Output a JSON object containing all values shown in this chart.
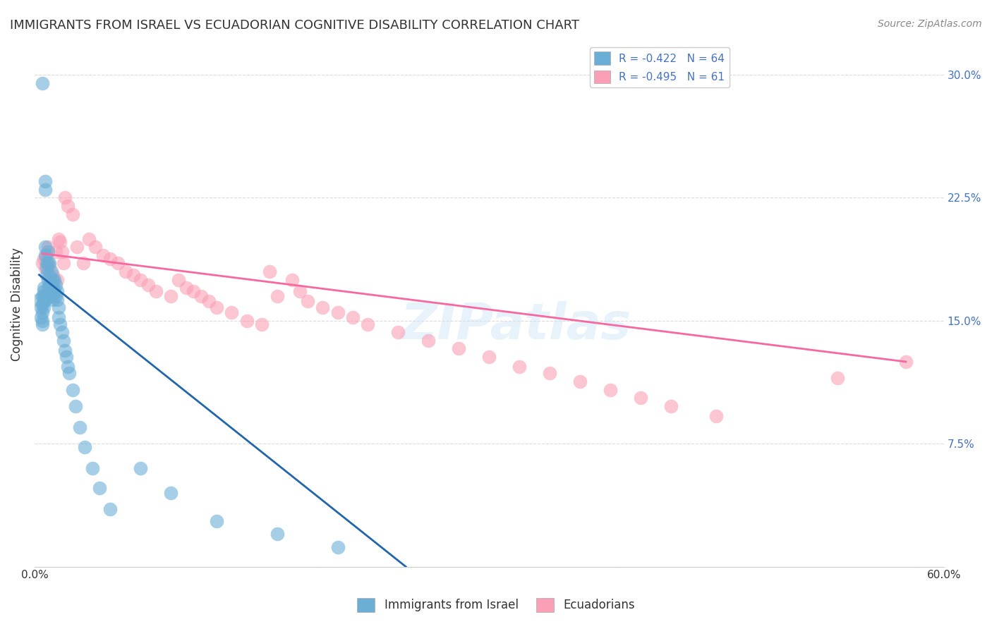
{
  "title": "IMMIGRANTS FROM ISRAEL VS ECUADORIAN COGNITIVE DISABILITY CORRELATION CHART",
  "source": "Source: ZipAtlas.com",
  "ylabel": "Cognitive Disability",
  "xlim": [
    0.0,
    0.6
  ],
  "ylim": [
    0.0,
    0.32
  ],
  "xticks": [
    0.0,
    0.1,
    0.2,
    0.3,
    0.4,
    0.5,
    0.6
  ],
  "xtick_labels": [
    "0.0%",
    "",
    "",
    "",
    "",
    "",
    "60.0%"
  ],
  "yticks": [
    0.0,
    0.075,
    0.15,
    0.225,
    0.3
  ],
  "ytick_labels_right": [
    "",
    "7.5%",
    "15.0%",
    "22.5%",
    "30.0%"
  ],
  "grid_color": "#cccccc",
  "background_color": "#ffffff",
  "watermark": "ZIPatlas",
  "color_blue": "#6baed6",
  "color_pink": "#fa9fb5",
  "color_blue_line": "#2166ac",
  "color_pink_line": "#f768a1",
  "israel_x": [
    0.003,
    0.004,
    0.004,
    0.005,
    0.005,
    0.005,
    0.005,
    0.005,
    0.005,
    0.006,
    0.006,
    0.006,
    0.006,
    0.006,
    0.007,
    0.007,
    0.007,
    0.007,
    0.007,
    0.008,
    0.008,
    0.008,
    0.008,
    0.009,
    0.009,
    0.009,
    0.009,
    0.01,
    0.01,
    0.01,
    0.01,
    0.011,
    0.011,
    0.011,
    0.012,
    0.012,
    0.012,
    0.013,
    0.013,
    0.014,
    0.014,
    0.015,
    0.015,
    0.016,
    0.016,
    0.017,
    0.018,
    0.019,
    0.02,
    0.021,
    0.022,
    0.023,
    0.025,
    0.027,
    0.03,
    0.033,
    0.038,
    0.043,
    0.05,
    0.07,
    0.09,
    0.12,
    0.16,
    0.2
  ],
  "israel_y": [
    0.163,
    0.158,
    0.152,
    0.295,
    0.165,
    0.16,
    0.155,
    0.15,
    0.148,
    0.17,
    0.168,
    0.165,
    0.162,
    0.158,
    0.235,
    0.23,
    0.195,
    0.19,
    0.163,
    0.185,
    0.182,
    0.178,
    0.165,
    0.192,
    0.185,
    0.175,
    0.17,
    0.185,
    0.178,
    0.172,
    0.165,
    0.18,
    0.173,
    0.165,
    0.175,
    0.17,
    0.163,
    0.175,
    0.168,
    0.172,
    0.165,
    0.168,
    0.163,
    0.158,
    0.152,
    0.148,
    0.143,
    0.138,
    0.132,
    0.128,
    0.122,
    0.118,
    0.108,
    0.098,
    0.085,
    0.073,
    0.06,
    0.048,
    0.035,
    0.06,
    0.045,
    0.028,
    0.02,
    0.012
  ],
  "ecuador_x": [
    0.005,
    0.006,
    0.007,
    0.008,
    0.009,
    0.01,
    0.011,
    0.012,
    0.014,
    0.015,
    0.016,
    0.017,
    0.018,
    0.019,
    0.02,
    0.022,
    0.025,
    0.028,
    0.032,
    0.036,
    0.04,
    0.045,
    0.05,
    0.055,
    0.06,
    0.065,
    0.07,
    0.075,
    0.08,
    0.09,
    0.095,
    0.1,
    0.105,
    0.11,
    0.115,
    0.12,
    0.13,
    0.14,
    0.15,
    0.155,
    0.16,
    0.17,
    0.175,
    0.18,
    0.19,
    0.2,
    0.21,
    0.22,
    0.24,
    0.26,
    0.28,
    0.3,
    0.32,
    0.34,
    0.36,
    0.38,
    0.4,
    0.42,
    0.45,
    0.53,
    0.575
  ],
  "ecuador_y": [
    0.185,
    0.188,
    0.182,
    0.19,
    0.195,
    0.183,
    0.175,
    0.178,
    0.192,
    0.175,
    0.2,
    0.198,
    0.192,
    0.185,
    0.225,
    0.22,
    0.215,
    0.195,
    0.185,
    0.2,
    0.195,
    0.19,
    0.188,
    0.185,
    0.18,
    0.178,
    0.175,
    0.172,
    0.168,
    0.165,
    0.175,
    0.17,
    0.168,
    0.165,
    0.162,
    0.158,
    0.155,
    0.15,
    0.148,
    0.18,
    0.165,
    0.175,
    0.168,
    0.162,
    0.158,
    0.155,
    0.152,
    0.148,
    0.143,
    0.138,
    0.133,
    0.128,
    0.122,
    0.118,
    0.113,
    0.108,
    0.103,
    0.098,
    0.092,
    0.115,
    0.125
  ],
  "blue_line_x": [
    0.003,
    0.245
  ],
  "blue_line_y": [
    0.178,
    0.0
  ],
  "pink_line_x": [
    0.005,
    0.575
  ],
  "pink_line_y": [
    0.191,
    0.125
  ]
}
